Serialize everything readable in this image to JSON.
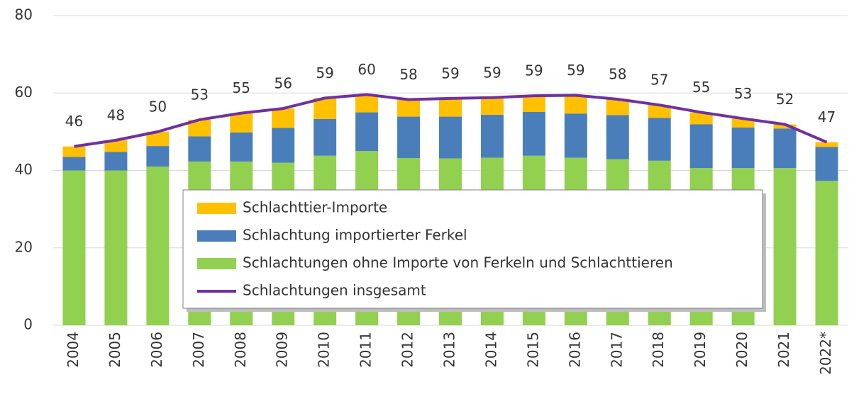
{
  "chart_data": {
    "type": "bar",
    "categories": [
      "2004",
      "2005",
      "2006",
      "2007",
      "2008",
      "2009",
      "2010",
      "2011",
      "2012",
      "2013",
      "2014",
      "2015",
      "2016",
      "2017",
      "2018",
      "2019",
      "2020",
      "2021",
      "2022*"
    ],
    "ylim": [
      0,
      80
    ],
    "yticks": [
      0,
      20,
      40,
      60,
      80
    ],
    "grid": true,
    "stacked": true,
    "series": [
      {
        "name": "Schlachttier-Importe",
        "color": "#ffc000",
        "values": [
          2.7,
          3.0,
          3.7,
          4.3,
          5.0,
          5.0,
          5.4,
          4.6,
          4.4,
          4.7,
          4.4,
          4.2,
          4.7,
          4.1,
          3.3,
          3.1,
          2.3,
          1.1,
          1.2
        ]
      },
      {
        "name": "Schlachtung importierter Ferkel",
        "color": "#4a7ebb",
        "values": [
          3.5,
          4.8,
          5.3,
          6.5,
          7.5,
          9.0,
          9.5,
          10.0,
          10.7,
          10.8,
          11.1,
          11.3,
          11.4,
          11.4,
          11.1,
          11.3,
          10.5,
          10.2,
          8.8
        ]
      },
      {
        "name": "Schlachtungen ohne Importe von Ferkeln und Schlachttieren",
        "color": "#92d050",
        "values": [
          40.0,
          40.0,
          41.0,
          42.3,
          42.3,
          42.0,
          43.8,
          45.0,
          43.2,
          43.1,
          43.3,
          43.8,
          43.3,
          42.9,
          42.5,
          40.6,
          40.6,
          40.6,
          37.3
        ]
      },
      {
        "name": "Schlachtungen insgesamt",
        "color": "#7030a0",
        "type": "line",
        "values": [
          46.2,
          47.8,
          50.0,
          53.1,
          54.8,
          56.0,
          58.7,
          59.6,
          58.3,
          58.6,
          58.8,
          59.3,
          59.4,
          58.4,
          56.9,
          55.0,
          53.4,
          51.9,
          47.3
        ],
        "value_labels": [
          "46",
          "48",
          "50",
          "53",
          "55",
          "56",
          "59",
          "60",
          "58",
          "59",
          "59",
          "59",
          "59",
          "58",
          "57",
          "55",
          "53",
          "52",
          "47"
        ]
      }
    ]
  }
}
